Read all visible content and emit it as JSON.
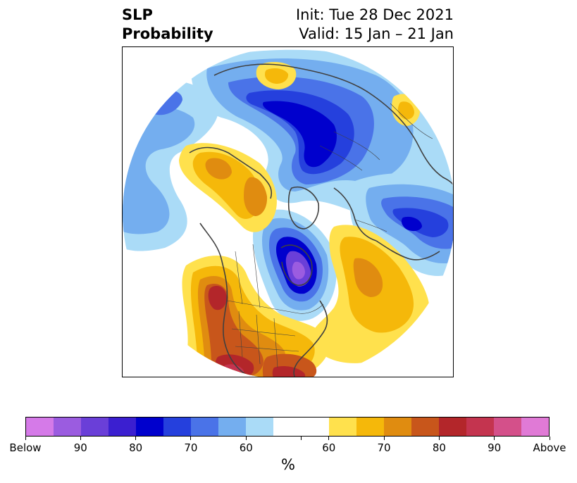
{
  "header": {
    "title_line1": "SLP",
    "title_line2": "Probability",
    "init_text": "Init: Tue 28 Dec 2021",
    "valid_text": "Valid: 15 Jan – 21 Jan"
  },
  "colorbar": {
    "unit": "%",
    "colors": [
      "#d57ae8",
      "#9b5ce0",
      "#6a3fd8",
      "#3b1fd0",
      "#0000cd",
      "#2540dd",
      "#4a73e8",
      "#74aeef",
      "#aadbf7",
      "#ffffff",
      "#ffe14d",
      "#f5b80a",
      "#e08c10",
      "#c8561b",
      "#b3262a",
      "#c4344f",
      "#d4508a",
      "#e07ad6"
    ],
    "tick_labels": [
      "Below",
      "90",
      "80",
      "70",
      "60",
      "",
      "60",
      "70",
      "80",
      "90",
      "Above"
    ]
  },
  "map": {
    "projection": "north-polar-stereographic",
    "variable": "SLP probability",
    "colors": {
      "blue_60": "#aadbf7",
      "blue_70": "#74aeef",
      "blue_80": "#4a73e8",
      "blue_85": "#2540dd",
      "blue_90": "#0000cd",
      "purple": "#6a3fd8",
      "violet": "#9b5ce0",
      "yellow_60": "#ffe14d",
      "yellow_70": "#f5b80a",
      "orange_80": "#e08c10",
      "orange_85": "#c8561b",
      "red_90": "#b3262a",
      "pink": "#c4344f",
      "coast": "#404040"
    }
  }
}
